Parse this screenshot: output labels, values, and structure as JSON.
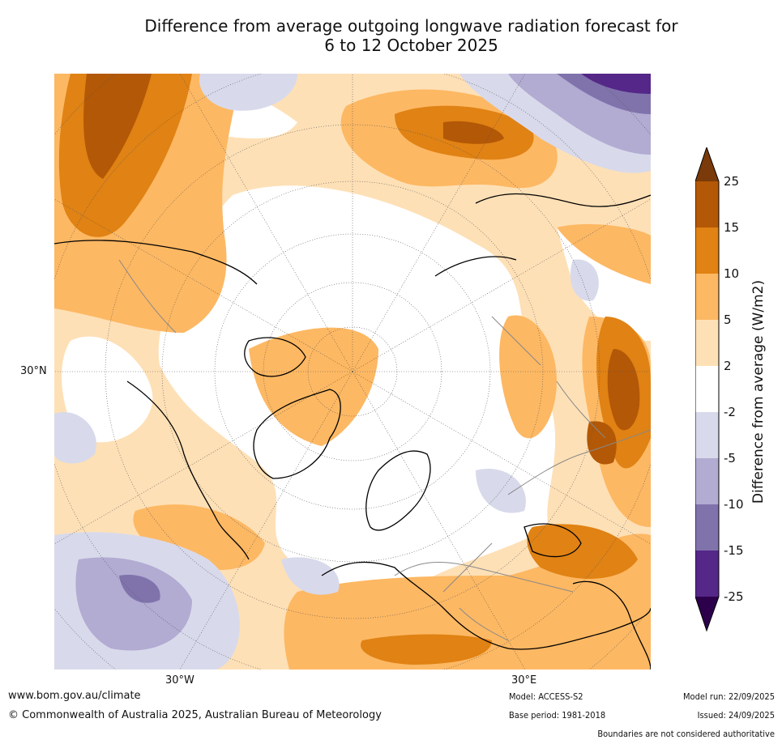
{
  "title_line1": "Difference from average outgoing longwave radiation forecast for",
  "title_line2": "6 to 12 October 2025",
  "axis_labels": {
    "lat_30n": "30°N",
    "lon_30w": "30°W",
    "lon_30e": "30°E"
  },
  "colorbar": {
    "label": "Difference from average (W/m2)",
    "ticks": [
      "25",
      "15",
      "10",
      "5",
      "2",
      "-2",
      "-5",
      "-10",
      "-15",
      "-25"
    ],
    "colors": {
      "over": "#7a3a0a",
      "b15_25": "#b35806",
      "b10_15": "#e08214",
      "b5_10": "#fdb863",
      "b2_5": "#fee0b6",
      "neutral": "#ffffff",
      "m5_m2": "#d8daeb",
      "m10_m5": "#b2abd2",
      "m15_m10": "#8073ac",
      "m25_m15": "#542788",
      "under": "#2d004b"
    }
  },
  "footer": {
    "url": "www.bom.gov.au/climate",
    "copyright": "© Commonwealth of Australia 2025, Australian Bureau of Meteorology",
    "model": "Model: ACCESS-S2",
    "base_period": "Base period: 1981-2018",
    "model_run": "Model run: 22/09/2025",
    "issued": "Issued: 24/09/2025",
    "disclaimer": "Boundaries are not considered authoritative"
  }
}
